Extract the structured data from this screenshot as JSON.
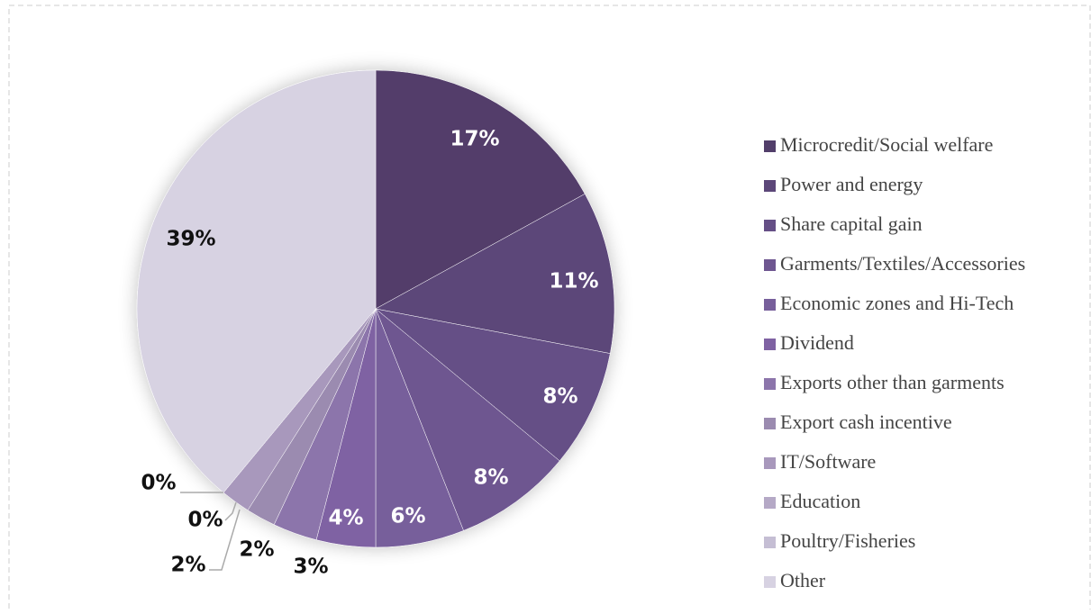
{
  "chart_data": {
    "type": "pie",
    "categories": [
      "Microcredit/Social welfare",
      "Power and energy",
      "Share capital gain",
      "Garments/Textiles/Accessories",
      "Economic zones and Hi-Tech",
      "Dividend",
      "Exports other than garments",
      "Export cash incentive",
      "IT/Software",
      "Education",
      "Poultry/Fisheries",
      "Other"
    ],
    "values": [
      17,
      11,
      8,
      8,
      6,
      4,
      3,
      2,
      2,
      0,
      0,
      39
    ],
    "value_labels": [
      "17%",
      "11%",
      "8%",
      "8%",
      "6%",
      "4%",
      "3%",
      "2%",
      "2%",
      "0%",
      "0%",
      "39%"
    ],
    "colors": [
      "#523e6a",
      "#5c4779",
      "#654f86",
      "#6e5690",
      "#775f9b",
      "#7f62a3",
      "#8c75ab",
      "#9b8bb0",
      "#a898bc",
      "#b5a9c6",
      "#c5bed4",
      "#d7d2e2"
    ],
    "legend": "right"
  }
}
